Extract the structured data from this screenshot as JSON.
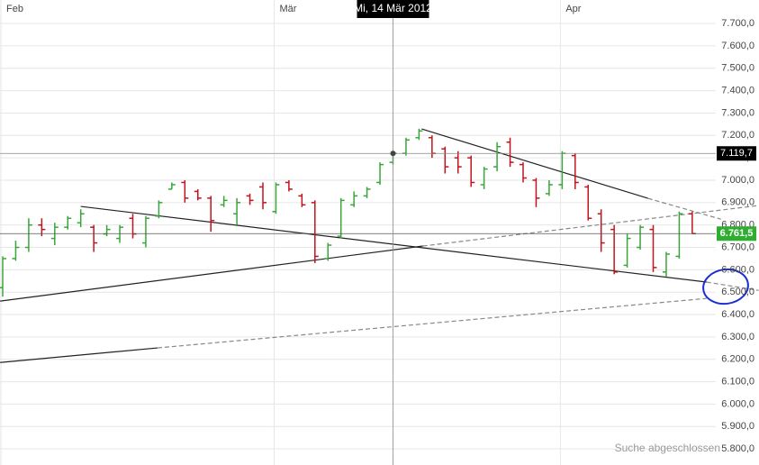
{
  "chart_data": {
    "type": "ohlc",
    "categories": [
      "Feb",
      null,
      null,
      null,
      null,
      null,
      null,
      null,
      null,
      null,
      null,
      null,
      null,
      null,
      null,
      null,
      null,
      null,
      null,
      null,
      null,
      "Mär",
      null,
      null,
      null,
      null,
      null,
      null,
      null,
      null,
      null,
      null,
      null,
      null,
      null,
      null,
      null,
      null,
      null,
      null,
      null,
      null,
      null,
      "Apr",
      null,
      null,
      null,
      null,
      null,
      null,
      null,
      null,
      null,
      null
    ],
    "open": [
      6520,
      6650,
      6700,
      6800,
      6740,
      6790,
      6810,
      6790,
      6760,
      6740,
      6830,
      6720,
      6840,
      6960,
      6990,
      6950,
      6920,
      6890,
      6850,
      6930,
      6970,
      6860,
      6990,
      6930,
      6900,
      6650,
      6750,
      6890,
      6930,
      6990,
      7080,
      7120,
      7190,
      7190,
      7140,
      7100,
      7100,
      6980,
      7060,
      7170,
      7070,
      7000,
      6940,
      6980,
      7110,
      6970,
      6850,
      6780,
      6620,
      6700,
      6780,
      6590,
      6660,
      6850
    ],
    "high": [
      6660,
      6730,
      6830,
      6830,
      6810,
      6840,
      6870,
      6800,
      6800,
      6800,
      6850,
      6840,
      6910,
      6990,
      7000,
      6960,
      6930,
      6930,
      6920,
      6940,
      6990,
      6990,
      7000,
      6940,
      6910,
      6720,
      6920,
      6950,
      6970,
      7080,
      7130,
      7190,
      7230,
      7200,
      7150,
      7130,
      7110,
      7060,
      7170,
      7190,
      7080,
      7010,
      7000,
      7130,
      7120,
      6980,
      6870,
      6800,
      6760,
      6800,
      6800,
      6680,
      6860,
      6860
    ],
    "low": [
      6480,
      6640,
      6680,
      6750,
      6710,
      6780,
      6790,
      6680,
      6750,
      6720,
      6740,
      6700,
      6830,
      6960,
      6900,
      6910,
      6770,
      6880,
      6800,
      6890,
      6870,
      6850,
      6950,
      6880,
      6630,
      6640,
      6740,
      6880,
      6920,
      6980,
      7070,
      7110,
      7180,
      7100,
      7030,
      7030,
      6970,
      6960,
      7040,
      7060,
      6990,
      6880,
      6930,
      6960,
      6960,
      6820,
      6680,
      6580,
      6610,
      6690,
      6590,
      6570,
      6650,
      6760
    ],
    "close": [
      6650,
      6700,
      6800,
      6780,
      6790,
      6830,
      6850,
      6720,
      6780,
      6790,
      6760,
      6830,
      6900,
      6980,
      6920,
      6920,
      6820,
      6910,
      6900,
      6910,
      6900,
      6980,
      6960,
      6890,
      6660,
      6710,
      6910,
      6930,
      6960,
      7070,
      7119.7,
      7180,
      7220,
      7120,
      7060,
      7060,
      6990,
      7050,
      7150,
      7080,
      7010,
      6920,
      6980,
      7120,
      6990,
      6830,
      6720,
      6590,
      6740,
      6790,
      6610,
      6670,
      6850,
      6761.5
    ],
    "up_color": "#3aa63a",
    "down_color": "#c0141e",
    "ylim": [
      5728,
      7805
    ],
    "yticks": [
      {
        "value": 7700,
        "label": "7.700,0"
      },
      {
        "value": 7600,
        "label": "7.600,0"
      },
      {
        "value": 7500,
        "label": "7.500,0"
      },
      {
        "value": 7400,
        "label": "7.400,0"
      },
      {
        "value": 7300,
        "label": "7.300,0"
      },
      {
        "value": 7200,
        "label": "7.200,0"
      },
      {
        "value": 7100,
        "label": "7.100,0"
      },
      {
        "value": 7000,
        "label": "7.000,0"
      },
      {
        "value": 6900,
        "label": "6.900,0"
      },
      {
        "value": 6800,
        "label": "6.800,0"
      },
      {
        "value": 6700,
        "label": "6.700,0"
      },
      {
        "value": 6600,
        "label": "6.600,0"
      },
      {
        "value": 6500,
        "label": "6.500,0"
      },
      {
        "value": 6400,
        "label": "6.400,0"
      },
      {
        "value": 6300,
        "label": "6.300,0"
      },
      {
        "value": 6200,
        "label": "6.200,0"
      },
      {
        "value": 6100,
        "label": "6.100,0"
      },
      {
        "value": 6000,
        "label": "6.000,0"
      },
      {
        "value": 5900,
        "label": "5.900,0"
      },
      {
        "value": 5800,
        "label": "5.800,0"
      }
    ],
    "grid": true,
    "crosshair": {
      "category": "Mi, 14 Mär 2012",
      "value": 7119.7,
      "label": "7.119,7"
    },
    "last": {
      "value": 6761.5,
      "label": "6.761,5",
      "color": "#2eae2e"
    },
    "trendlines": [
      {
        "x": [
          -0.2,
          32.3
        ],
        "values": [
          6460,
          6706
        ],
        "dashed": false,
        "color": "#222222"
      },
      {
        "x": [
          32.3,
          58.1
        ],
        "values": [
          6706,
          6887
        ],
        "dashed": true,
        "color": "#888888"
      },
      {
        "x": [
          6.0,
          54.1
        ],
        "values": [
          6883,
          6545
        ],
        "dashed": false,
        "color": "#222222"
      },
      {
        "x": [
          54.1,
          58.1
        ],
        "values": [
          6545,
          6508
        ],
        "dashed": true,
        "color": "#888888"
      },
      {
        "x": [
          32.2,
          49.6
        ],
        "values": [
          7229,
          6919
        ],
        "dashed": false,
        "color": "#222222"
      },
      {
        "x": [
          49.6,
          55.2
        ],
        "values": [
          6919,
          6826
        ],
        "dashed": true,
        "color": "#888888"
      },
      {
        "x": [
          -0.2,
          11.9
        ],
        "values": [
          6186,
          6251
        ],
        "dashed": false,
        "color": "#222222"
      },
      {
        "x": [
          11.9,
          54.1
        ],
        "values": [
          6251,
          6472
        ],
        "dashed": true,
        "color": "#888888"
      }
    ],
    "status": "Suche abgeschlossen"
  }
}
